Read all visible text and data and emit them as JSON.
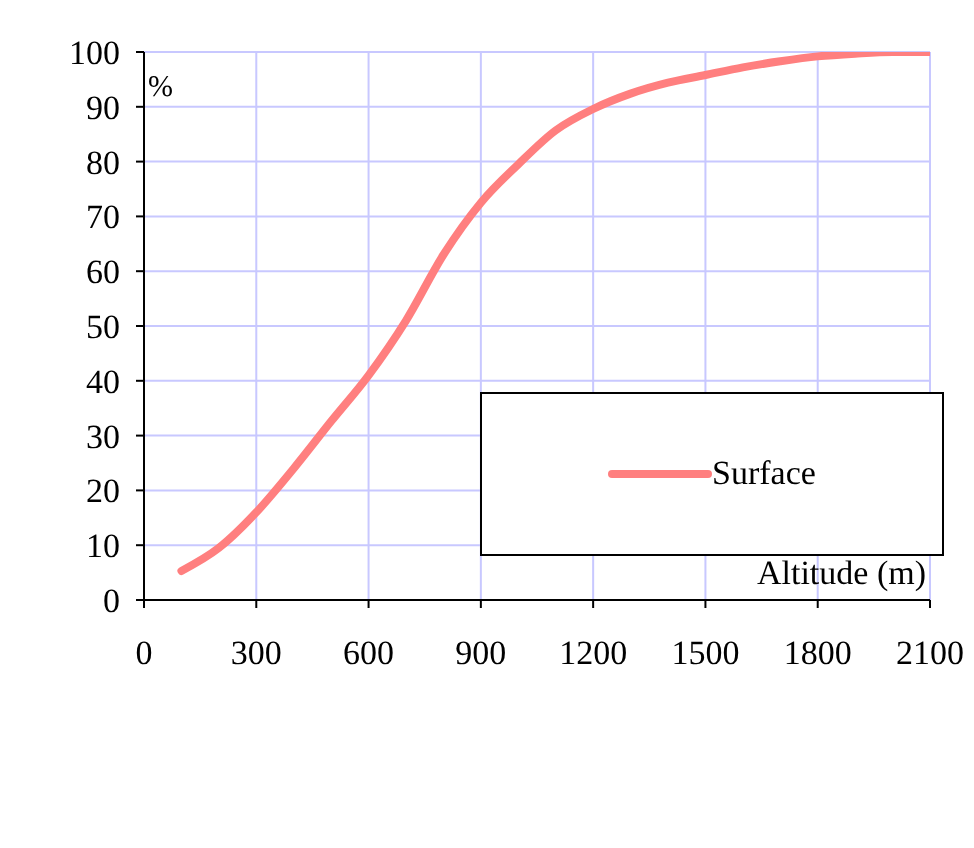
{
  "chart_data": {
    "type": "line",
    "xlabel": "Altitude (m)",
    "ylabel": "%",
    "x": [
      100,
      200,
      300,
      400,
      500,
      600,
      700,
      800,
      900,
      1000,
      1100,
      1200,
      1300,
      1400,
      1500,
      1600,
      1700,
      1800,
      1900,
      2000,
      2100
    ],
    "series": [
      {
        "name": "Surface",
        "color": "#ff7f7f",
        "values": [
          5.3,
          9.5,
          16,
          24,
          32.6,
          41,
          51,
          63,
          72.5,
          79.5,
          85.7,
          89.6,
          92.4,
          94.4,
          95.8,
          97.2,
          98.3,
          99.2,
          99.7,
          100,
          100
        ]
      }
    ],
    "xlim": [
      0,
      2100
    ],
    "xticks": [
      0,
      300,
      600,
      900,
      1200,
      1500,
      1800,
      2100
    ],
    "ylim": [
      0,
      100
    ],
    "yticks": [
      0,
      10,
      20,
      30,
      40,
      50,
      60,
      70,
      80,
      90,
      100
    ],
    "grid": true,
    "legend": "right",
    "marker": "none",
    "line_style": "solid"
  }
}
